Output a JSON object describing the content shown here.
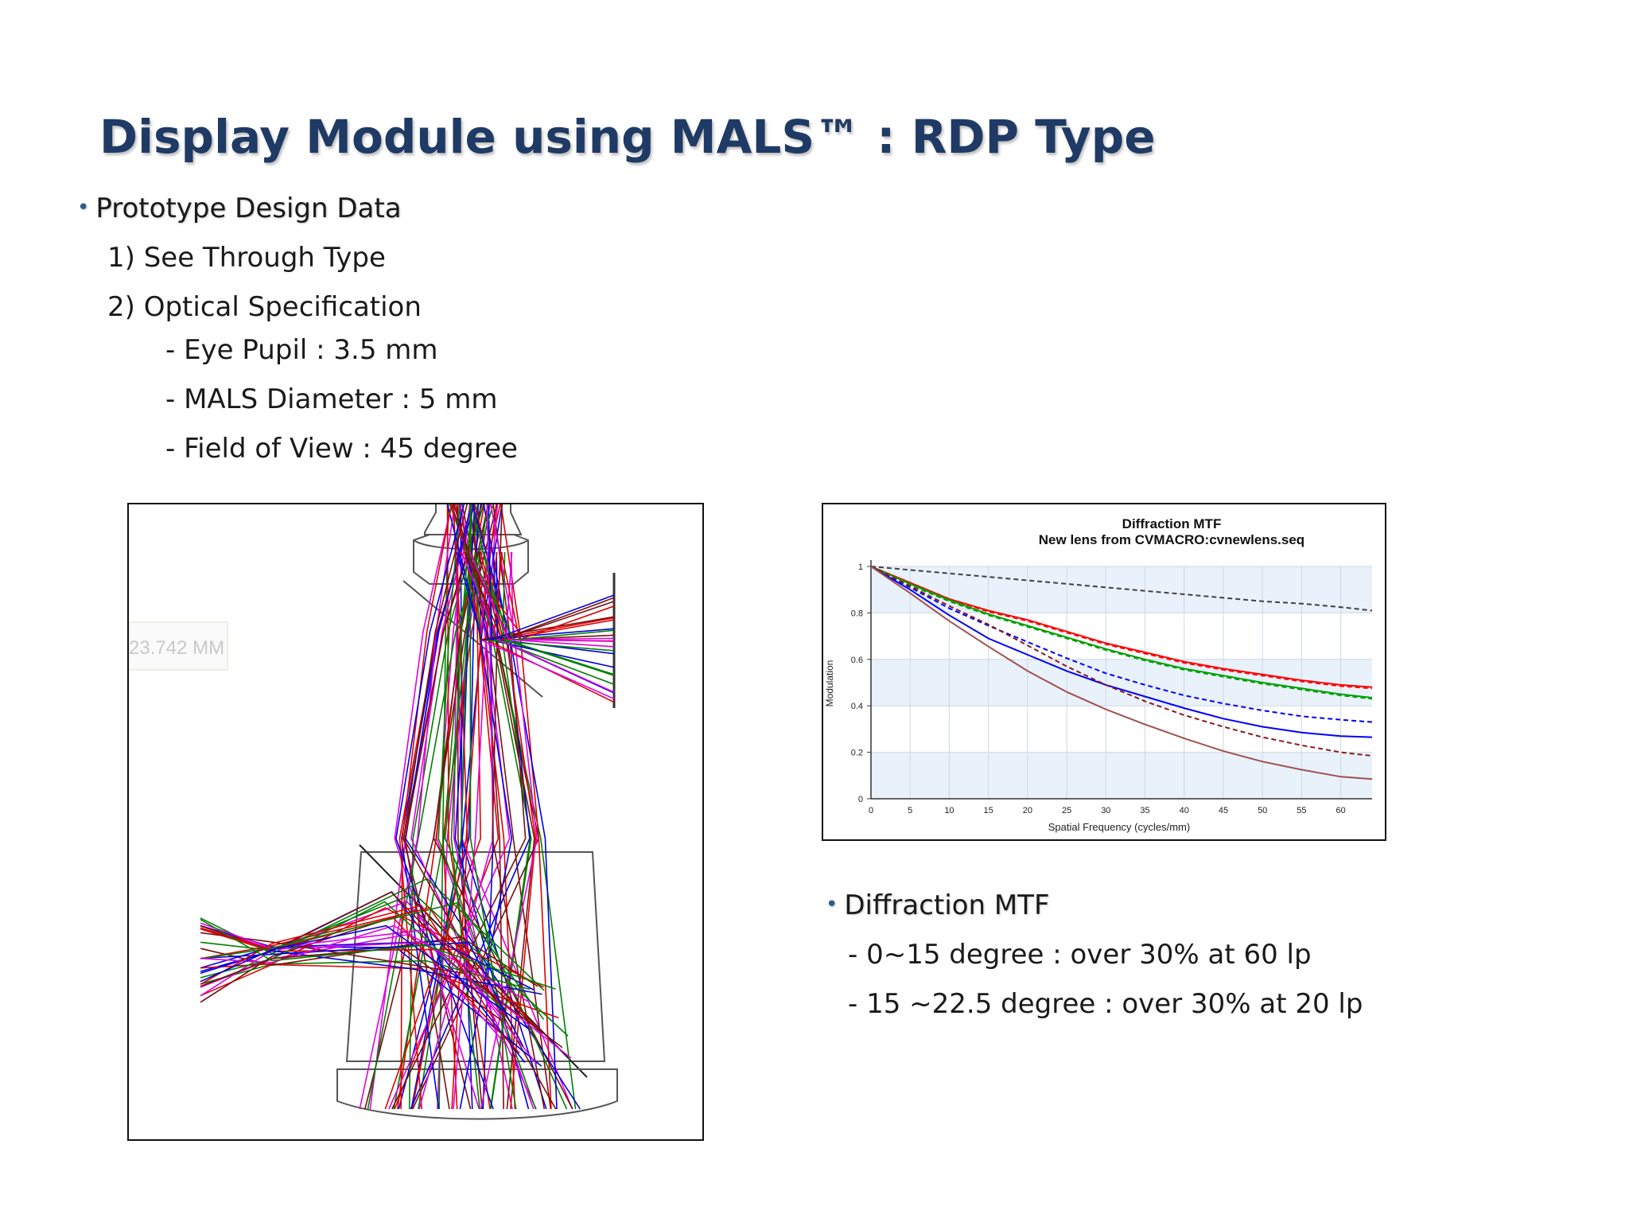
{
  "slide": {
    "title": "Display Module using MALS™ : RDP Type",
    "bullet_dot": "•",
    "section1": {
      "heading": "Prototype Design Data",
      "items": [
        "1) See Through Type",
        "2) Optical Specification"
      ],
      "specs": [
        "- Eye Pupil : 3.5 mm",
        "- MALS Diameter : 5 mm",
        "- Field of View : 45 degree"
      ]
    },
    "section2": {
      "heading": "Diffraction MTF",
      "items": [
        "- 0~15 degree : over 30% at 60 lp",
        "- 15 ~22.5 degree : over 30% at 20 lp"
      ]
    }
  },
  "ray_diagram": {
    "scale_label": "23.742 MM",
    "colors": [
      "#e00000",
      "#0000e0",
      "#008000",
      "#e000e0",
      "#7a1010"
    ]
  },
  "chart_data": {
    "type": "line",
    "title": "Diffraction MTF",
    "subtitle": "New lens from CVMACRO:cvnewlens.seq",
    "xlabel": "Spatial Frequency (cycles/mm)",
    "ylabel": "Modulation",
    "xlim": [
      0,
      64
    ],
    "ylim": [
      0,
      1
    ],
    "xticks": [
      0,
      5,
      10,
      15,
      20,
      25,
      30,
      35,
      40,
      45,
      50,
      55,
      60
    ],
    "yticks": [
      0,
      0.2,
      0.4,
      0.6,
      0.8,
      1
    ],
    "grid": true,
    "x": [
      0,
      5,
      10,
      15,
      20,
      25,
      30,
      35,
      40,
      45,
      50,
      55,
      60,
      64
    ],
    "series": [
      {
        "color": "#404040",
        "dash": true,
        "values": [
          1.0,
          0.985,
          0.97,
          0.955,
          0.94,
          0.925,
          0.91,
          0.895,
          0.88,
          0.865,
          0.85,
          0.84,
          0.825,
          0.81
        ]
      },
      {
        "color": "#ff0000",
        "dash": false,
        "values": [
          1.0,
          0.93,
          0.86,
          0.81,
          0.77,
          0.72,
          0.67,
          0.63,
          0.59,
          0.56,
          0.535,
          0.51,
          0.49,
          0.48
        ]
      },
      {
        "color": "#ff0000",
        "dash": true,
        "values": [
          1.0,
          0.93,
          0.86,
          0.805,
          0.765,
          0.715,
          0.665,
          0.625,
          0.585,
          0.555,
          0.53,
          0.505,
          0.485,
          0.475
        ]
      },
      {
        "color": "#00a000",
        "dash": false,
        "values": [
          1.0,
          0.925,
          0.855,
          0.795,
          0.745,
          0.695,
          0.645,
          0.6,
          0.56,
          0.53,
          0.5,
          0.475,
          0.45,
          0.435
        ]
      },
      {
        "color": "#00a000",
        "dash": true,
        "values": [
          1.0,
          0.92,
          0.85,
          0.79,
          0.74,
          0.69,
          0.64,
          0.595,
          0.555,
          0.525,
          0.495,
          0.47,
          0.445,
          0.43
        ]
      },
      {
        "color": "#0000ff",
        "dash": true,
        "values": [
          1.0,
          0.91,
          0.82,
          0.745,
          0.675,
          0.605,
          0.54,
          0.49,
          0.445,
          0.41,
          0.38,
          0.355,
          0.34,
          0.33
        ]
      },
      {
        "color": "#0000ff",
        "dash": false,
        "values": [
          1.0,
          0.9,
          0.79,
          0.69,
          0.62,
          0.55,
          0.49,
          0.44,
          0.39,
          0.345,
          0.31,
          0.285,
          0.27,
          0.265
        ]
      },
      {
        "color": "#8b1a1a",
        "dash": true,
        "values": [
          1.0,
          0.915,
          0.83,
          0.75,
          0.66,
          0.57,
          0.49,
          0.42,
          0.36,
          0.31,
          0.265,
          0.23,
          0.2,
          0.185
        ]
      },
      {
        "color": "#a05050",
        "dash": false,
        "values": [
          1.0,
          0.885,
          0.765,
          0.655,
          0.55,
          0.46,
          0.385,
          0.32,
          0.26,
          0.205,
          0.16,
          0.125,
          0.095,
          0.085
        ]
      }
    ]
  }
}
